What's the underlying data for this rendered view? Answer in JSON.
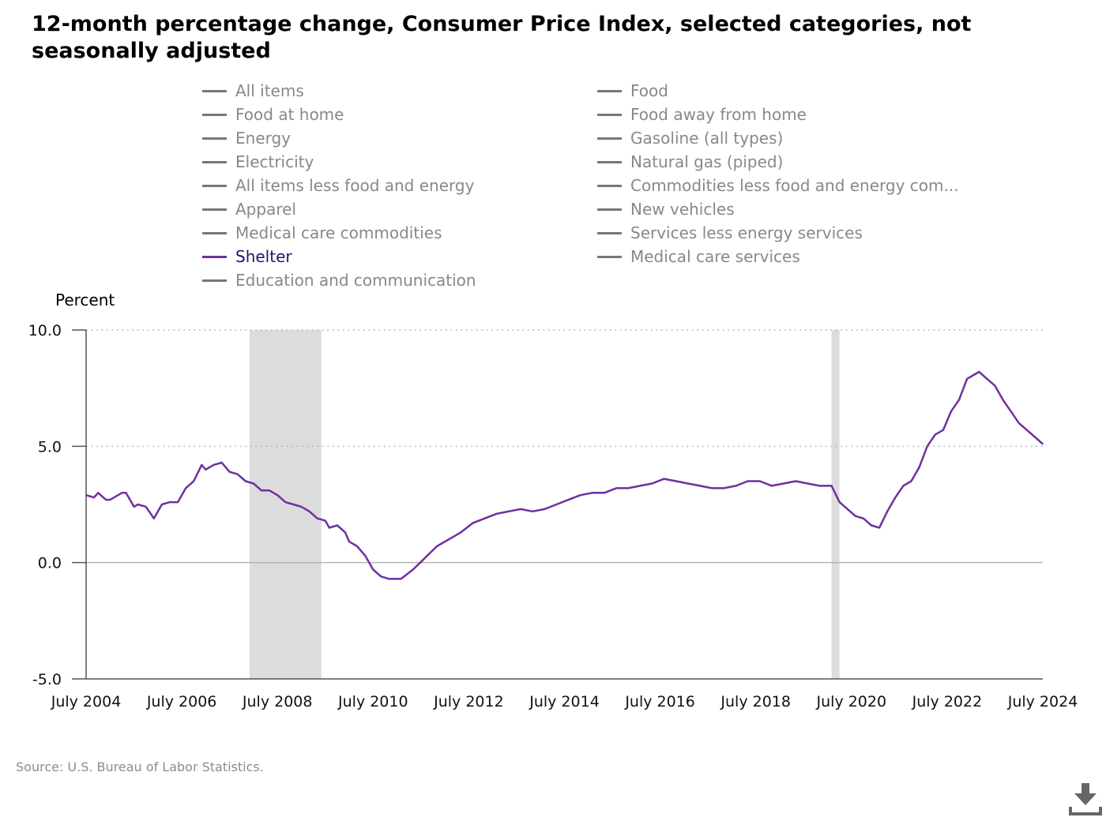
{
  "title": "12-month percentage change, Consumer Price Index, selected categories, not seasonally adjusted",
  "legend": [
    {
      "label": "All items",
      "active": false
    },
    {
      "label": "Food",
      "active": false
    },
    {
      "label": "Food at home",
      "active": false
    },
    {
      "label": "Food away from home",
      "active": false
    },
    {
      "label": "Energy",
      "active": false
    },
    {
      "label": "Gasoline (all types)",
      "active": false
    },
    {
      "label": "Electricity",
      "active": false
    },
    {
      "label": "Natural gas (piped)",
      "active": false
    },
    {
      "label": "All items less food and energy",
      "active": false
    },
    {
      "label": "Commodities less food and energy com...",
      "active": false
    },
    {
      "label": "Apparel",
      "active": false
    },
    {
      "label": "New vehicles",
      "active": false
    },
    {
      "label": "Medical care commodities",
      "active": false
    },
    {
      "label": "Services less energy services",
      "active": false
    },
    {
      "label": "Shelter",
      "active": true
    },
    {
      "label": "Medical care services",
      "active": false
    },
    {
      "label": "Education and communication",
      "active": false
    }
  ],
  "ylabel": "Percent",
  "source": "Source: U.S. Bureau of Labor Statistics.",
  "download_icon": "download-icon",
  "colors": {
    "series": "#7030a0",
    "recession": "#dcdcdc",
    "legend_inactive": "#888888",
    "legend_active_text": "#1a1a6e"
  },
  "chart_data": {
    "type": "line",
    "x_start": "2004-07",
    "x_end": "2024-07",
    "x_ticks": [
      "July 2004",
      "July 2006",
      "July 2008",
      "July 2010",
      "July 2012",
      "July 2014",
      "July 2016",
      "July 2018",
      "July 2020",
      "July 2022",
      "July 2024"
    ],
    "y_ticks": [
      "10.0",
      "5.0",
      "0.0",
      "-5.0"
    ],
    "ylim": [
      -5,
      10
    ],
    "gridlines": [
      10,
      5,
      0
    ],
    "recessions": [
      [
        "2007-12",
        "2009-06"
      ],
      [
        "2020-02",
        "2020-04"
      ]
    ],
    "series": [
      {
        "name": "Shelter",
        "x": [
          "2004-07",
          "2004-09",
          "2004-10",
          "2004-12",
          "2005-01",
          "2005-04",
          "2005-05",
          "2005-07",
          "2005-08",
          "2005-10",
          "2005-12",
          "2006-02",
          "2006-04",
          "2006-06",
          "2006-08",
          "2006-10",
          "2006-12",
          "2007-01",
          "2007-03",
          "2007-05",
          "2007-07",
          "2007-09",
          "2007-11",
          "2008-01",
          "2008-03",
          "2008-05",
          "2008-07",
          "2008-09",
          "2008-11",
          "2009-01",
          "2009-03",
          "2009-05",
          "2009-07",
          "2009-08",
          "2009-10",
          "2009-12",
          "2010-01",
          "2010-03",
          "2010-05",
          "2010-07",
          "2010-09",
          "2010-11",
          "2011-02",
          "2011-05",
          "2011-08",
          "2011-11",
          "2012-02",
          "2012-05",
          "2012-08",
          "2012-11",
          "2013-02",
          "2013-05",
          "2013-08",
          "2013-11",
          "2014-02",
          "2014-05",
          "2014-08",
          "2014-11",
          "2015-02",
          "2015-05",
          "2015-08",
          "2015-11",
          "2016-02",
          "2016-05",
          "2016-08",
          "2016-11",
          "2017-02",
          "2017-05",
          "2017-08",
          "2017-11",
          "2018-02",
          "2018-05",
          "2018-08",
          "2018-11",
          "2019-02",
          "2019-05",
          "2019-08",
          "2019-11",
          "2020-02",
          "2020-04",
          "2020-06",
          "2020-08",
          "2020-10",
          "2020-12",
          "2021-02",
          "2021-04",
          "2021-06",
          "2021-08",
          "2021-10",
          "2021-12",
          "2022-02",
          "2022-04",
          "2022-06",
          "2022-08",
          "2022-10",
          "2022-12",
          "2023-02",
          "2023-03",
          "2023-05",
          "2023-07",
          "2023-09",
          "2023-11",
          "2024-01",
          "2024-03",
          "2024-05",
          "2024-07"
        ],
        "y": [
          2.9,
          2.8,
          3.0,
          2.7,
          2.7,
          3.0,
          3.0,
          2.4,
          2.5,
          2.4,
          1.9,
          2.5,
          2.6,
          2.6,
          3.2,
          3.5,
          4.2,
          4.0,
          4.2,
          4.3,
          3.9,
          3.8,
          3.5,
          3.4,
          3.1,
          3.1,
          2.9,
          2.6,
          2.5,
          2.4,
          2.2,
          1.9,
          1.8,
          1.5,
          1.6,
          1.3,
          0.9,
          0.7,
          0.3,
          -0.3,
          -0.6,
          -0.7,
          -0.7,
          -0.3,
          0.2,
          0.7,
          1.0,
          1.3,
          1.7,
          1.9,
          2.1,
          2.2,
          2.3,
          2.2,
          2.3,
          2.5,
          2.7,
          2.9,
          3.0,
          3.0,
          3.2,
          3.2,
          3.3,
          3.4,
          3.6,
          3.5,
          3.4,
          3.3,
          3.2,
          3.2,
          3.3,
          3.5,
          3.5,
          3.3,
          3.4,
          3.5,
          3.4,
          3.3,
          3.3,
          2.6,
          2.3,
          2.0,
          1.9,
          1.6,
          1.5,
          2.2,
          2.8,
          3.3,
          3.5,
          4.1,
          5.0,
          5.5,
          5.7,
          6.5,
          7.0,
          7.9,
          8.1,
          8.2,
          7.9,
          7.6,
          7.0,
          6.5,
          6.0,
          5.7,
          5.4,
          5.1
        ]
      }
    ]
  }
}
